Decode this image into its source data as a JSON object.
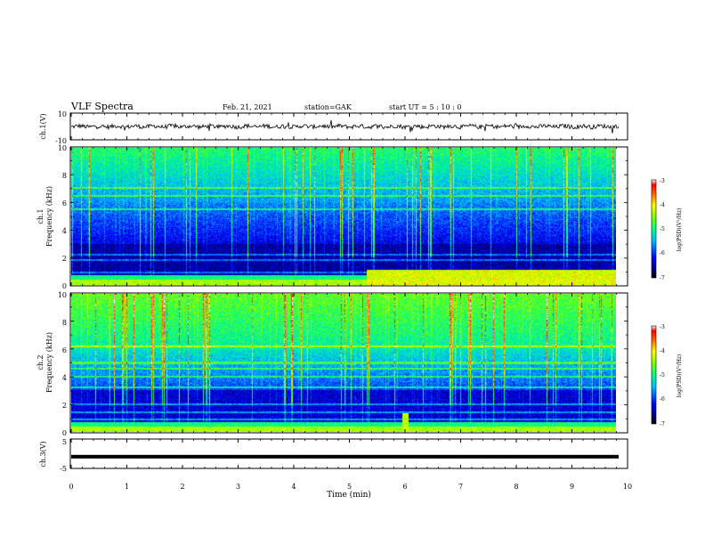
{
  "header": {
    "title": "VLF Spectra",
    "date": "Feb. 21, 2021",
    "station": "station=GAK",
    "start": "start  UT =  5 : 10 : 0"
  },
  "chart_data": {
    "type": "heatmap",
    "xlabel": "Time (min)",
    "xlim": [
      0,
      10
    ],
    "x_ticks": [
      "0",
      "1",
      "2",
      "3",
      "4",
      "5",
      "6",
      "7",
      "8",
      "9",
      "10"
    ],
    "data_end_min": 9.84,
    "panels": [
      {
        "name": "ch1_waveform",
        "ylabel": "ch.1(V)",
        "ylim": [
          -10,
          10
        ],
        "y_ticks": [
          "10",
          "-10"
        ],
        "baseline_V": 0
      },
      {
        "name": "ch1_spectrogram",
        "ylabel_top": "ch.1",
        "ylabel": "Frequency (kHz)",
        "ylim": [
          0,
          10
        ],
        "y_ticks": [
          "0",
          "2",
          "4",
          "6",
          "8",
          "10"
        ],
        "colorbar": {
          "label": "log(PSD)(V²/Hz)",
          "range": [
            -7,
            -3
          ],
          "ticks": [
            "-3",
            "-4",
            "-5",
            "-6",
            "-7"
          ]
        },
        "bands_kHz": [
          0.3,
          0.6,
          0.9,
          1.8,
          2.2,
          5.5,
          6.5,
          7.1
        ],
        "enhancement_start_min": 5.3
      },
      {
        "name": "ch2_spectrogram",
        "ylabel_top": "ch.2",
        "ylabel": "Frequency (kHz)",
        "ylim": [
          0,
          10
        ],
        "y_ticks": [
          "0",
          "2",
          "4",
          "6",
          "8",
          "10"
        ],
        "colorbar": {
          "label": "log(PSD)(V²/Hz)",
          "range": [
            -7,
            -3
          ],
          "ticks": [
            "-3",
            "-4",
            "-5",
            "-6",
            "-7"
          ]
        },
        "bands_kHz": [
          0.3,
          0.9,
          1.4,
          2.0,
          3.2,
          4.0,
          4.6,
          5.0,
          6.2
        ],
        "burst_min": 6.0
      },
      {
        "name": "ch3_waveform",
        "ylabel": "ch.3(V)",
        "ylim": [
          -5,
          5
        ],
        "y_ticks": [
          "5",
          "-5"
        ],
        "level_V": -1
      }
    ]
  }
}
